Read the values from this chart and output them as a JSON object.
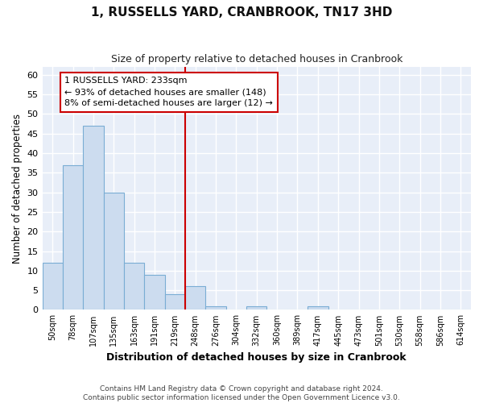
{
  "title": "1, RUSSELLS YARD, CRANBROOK, TN17 3HD",
  "subtitle": "Size of property relative to detached houses in Cranbrook",
  "xlabel": "Distribution of detached houses by size in Cranbrook",
  "ylabel": "Number of detached properties",
  "categories": [
    "50sqm",
    "78sqm",
    "107sqm",
    "135sqm",
    "163sqm",
    "191sqm",
    "219sqm",
    "248sqm",
    "276sqm",
    "304sqm",
    "332sqm",
    "360sqm",
    "389sqm",
    "417sqm",
    "445sqm",
    "473sqm",
    "501sqm",
    "530sqm",
    "558sqm",
    "586sqm",
    "614sqm"
  ],
  "bar_values": [
    12,
    37,
    47,
    30,
    12,
    9,
    4,
    6,
    1,
    0,
    1,
    0,
    0,
    1,
    0,
    0,
    0,
    0,
    0,
    0,
    0
  ],
  "bar_color": "#ccdcef",
  "bar_edge_color": "#7aadd4",
  "property_line_bin_index": 6.5,
  "annotation_line1": "1 RUSSELLS YARD: 233sqm",
  "annotation_line2": "← 93% of detached houses are smaller (148)",
  "annotation_line3": "8% of semi-detached houses are larger (12) →",
  "annotation_box_facecolor": "#ffffff",
  "annotation_box_edgecolor": "#cc0000",
  "vline_color": "#cc0000",
  "ylim": [
    0,
    62
  ],
  "yticks": [
    0,
    5,
    10,
    15,
    20,
    25,
    30,
    35,
    40,
    45,
    50,
    55,
    60
  ],
  "background_color": "#ffffff",
  "plot_bg_color": "#e8eef8",
  "grid_color": "#ffffff",
  "footer_line1": "Contains HM Land Registry data © Crown copyright and database right 2024.",
  "footer_line2": "Contains public sector information licensed under the Open Government Licence v3.0."
}
